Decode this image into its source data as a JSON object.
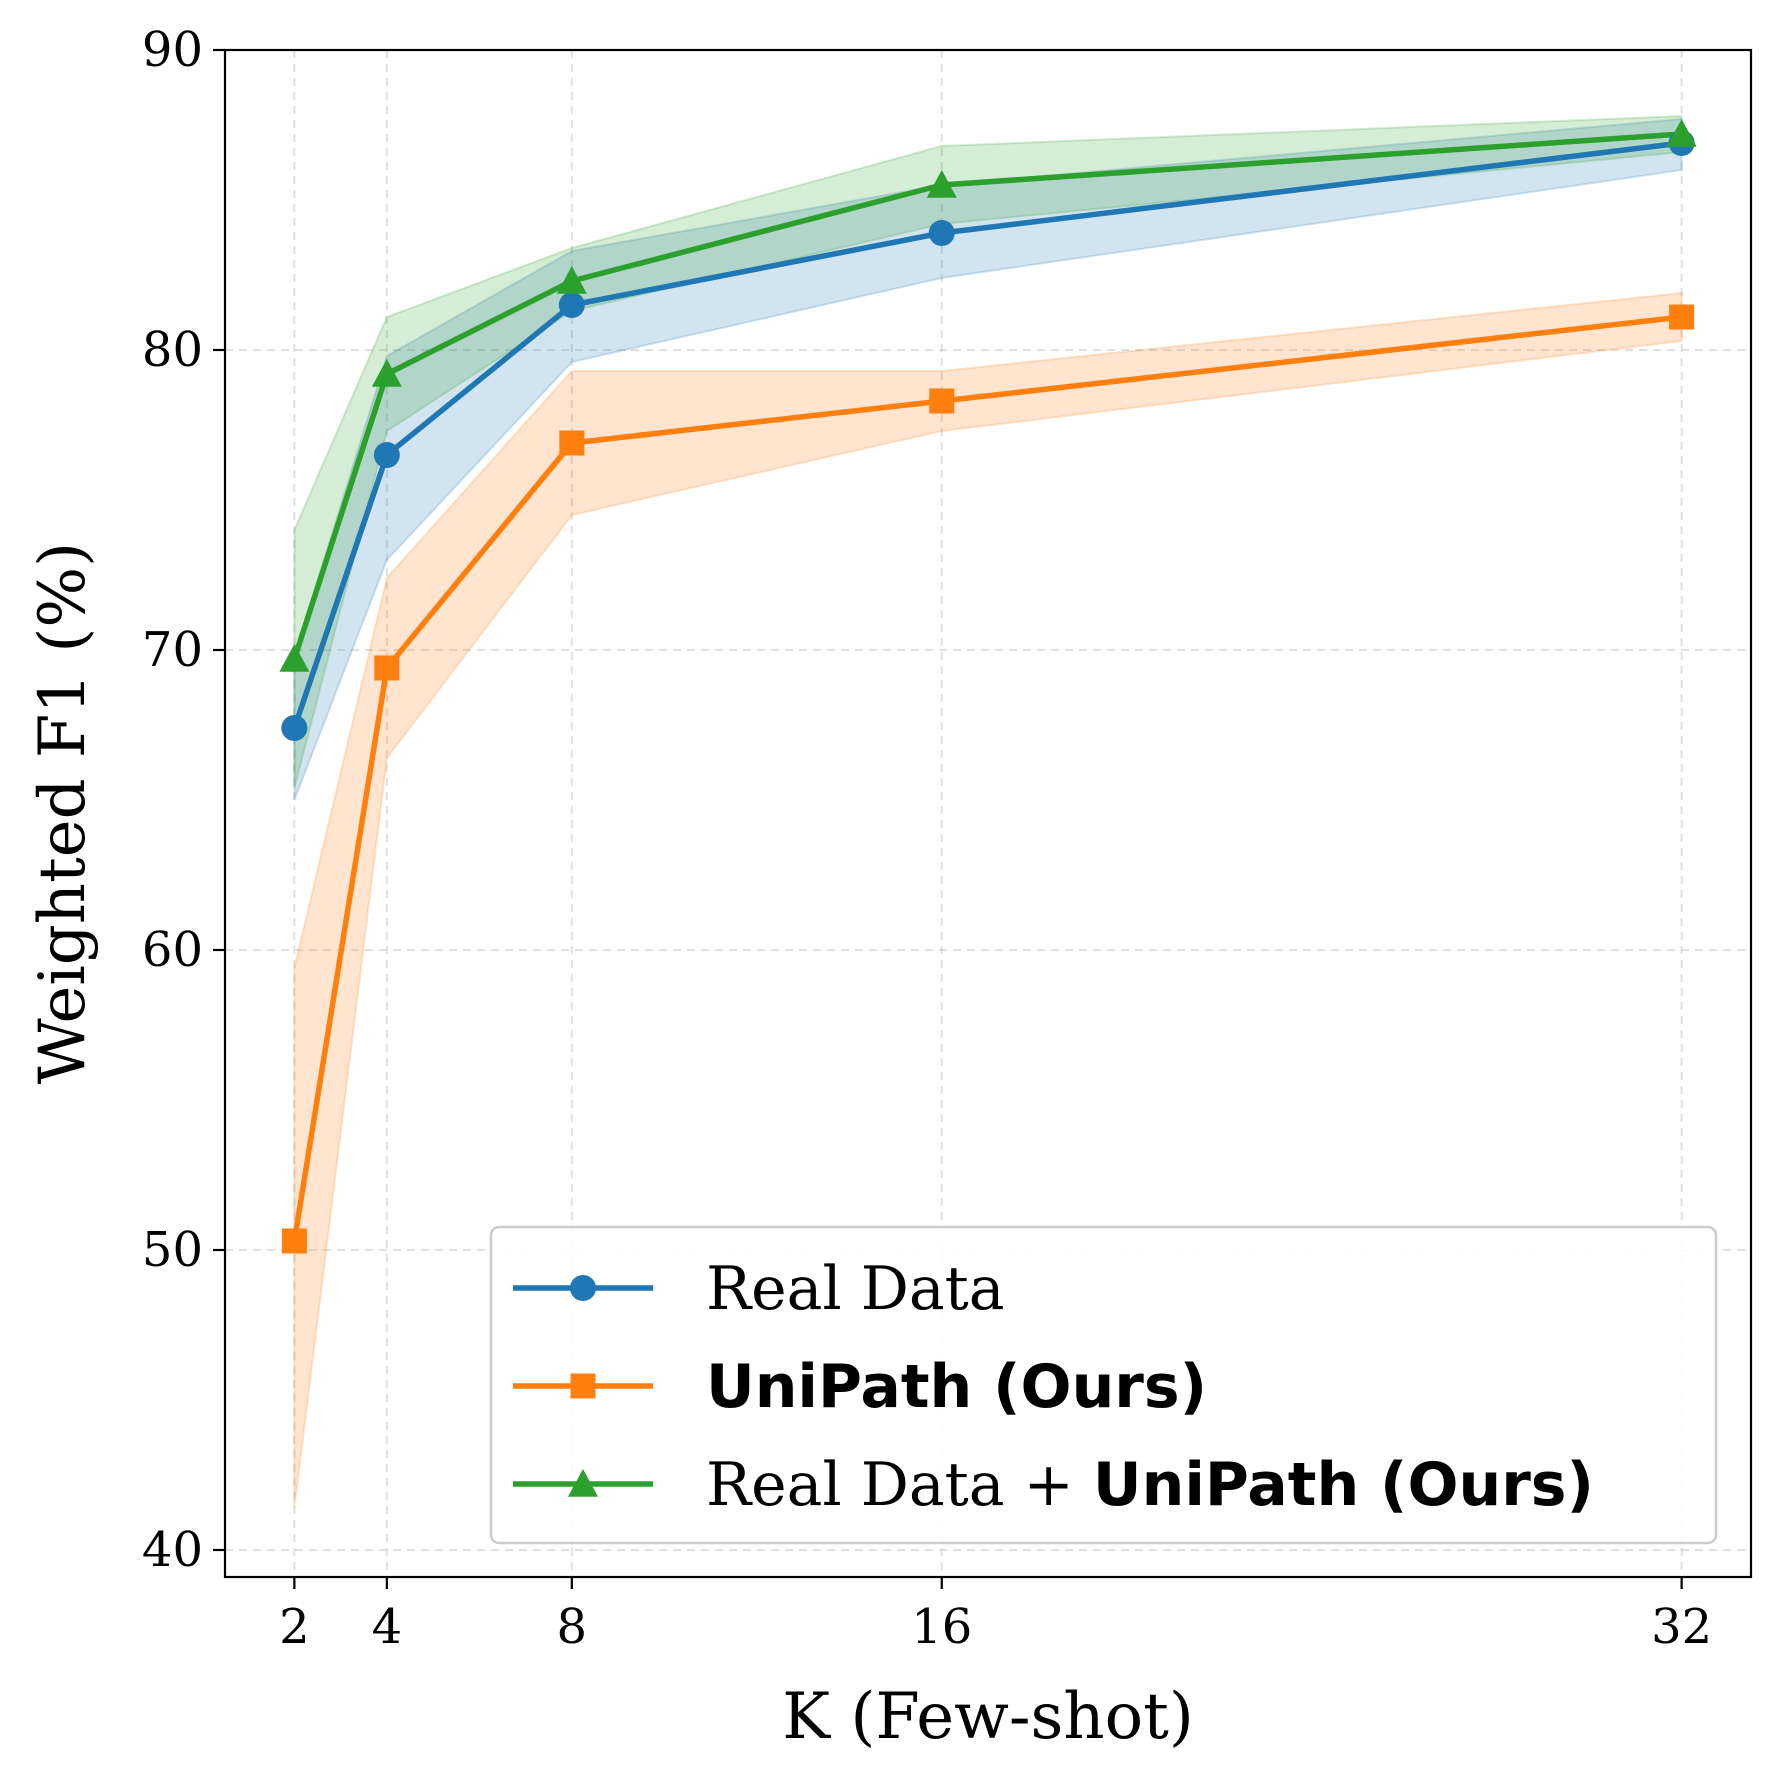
{
  "chart_data": {
    "type": "line",
    "title": "",
    "xlabel": "K (Few-shot)",
    "ylabel": "Weighted F1 (%)",
    "x": [
      2,
      4,
      8,
      16,
      32
    ],
    "x_tick_labels": [
      "2",
      "4",
      "8",
      "16",
      "32"
    ],
    "xlim": [
      0.5,
      33.5
    ],
    "ylim": [
      39.1,
      90
    ],
    "y_ticks": [
      40,
      50,
      60,
      70,
      80,
      90
    ],
    "y_tick_labels": [
      "40",
      "50",
      "60",
      "70",
      "80",
      "90"
    ],
    "grid": true,
    "legend_position": "lower-right",
    "series": [
      {
        "name": "Real Data",
        "name_plain": "Real Data",
        "name_bold": "",
        "color": "#1f77b4",
        "marker": "circle",
        "values": [
          67.4,
          76.5,
          81.5,
          83.9,
          86.9
        ],
        "lower": [
          65.0,
          73.0,
          79.6,
          82.4,
          86.0
        ],
        "upper": [
          69.8,
          79.8,
          83.3,
          85.5,
          87.7
        ]
      },
      {
        "name": "UniPath (Ours)",
        "name_plain": "",
        "name_bold": "UniPath (Ours)",
        "color": "#ff7f0e",
        "marker": "square",
        "values": [
          50.3,
          69.4,
          76.9,
          78.3,
          81.1
        ],
        "lower": [
          41.4,
          66.4,
          74.5,
          77.3,
          80.3
        ],
        "upper": [
          59.4,
          72.4,
          79.3,
          79.3,
          81.9
        ]
      },
      {
        "name": "Real Data + UniPath (Ours)",
        "name_plain": "Real Data + ",
        "name_bold": "UniPath (Ours)",
        "color": "#2ca02c",
        "marker": "triangle",
        "values": [
          69.7,
          79.2,
          82.3,
          85.5,
          87.2
        ],
        "lower": [
          65.4,
          77.3,
          81.3,
          84.2,
          86.6
        ],
        "upper": [
          74.0,
          81.1,
          83.4,
          86.8,
          87.8
        ]
      }
    ]
  }
}
